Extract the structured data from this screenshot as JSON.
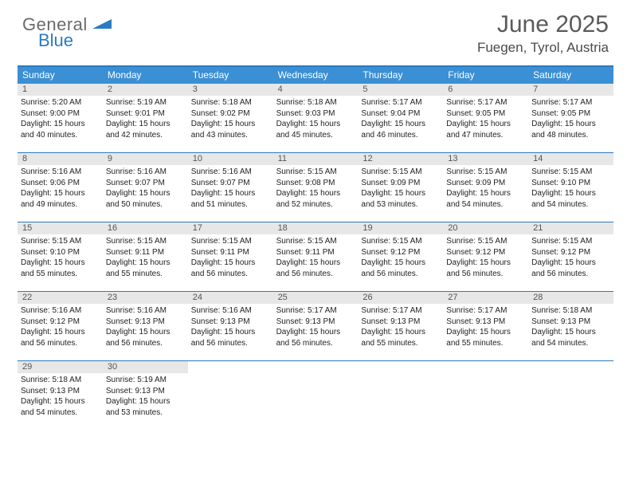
{
  "logo": {
    "word1": "General",
    "word2": "Blue",
    "tri_color": "#2b7bbf",
    "text_color_gray": "#6a6a6a"
  },
  "header": {
    "month_title": "June 2025",
    "location": "Fuegen, Tyrol, Austria"
  },
  "colors": {
    "header_bg": "#3b8fd4",
    "border": "#2b7bbf",
    "daynum_bg": "#e7e7e7"
  },
  "day_names": [
    "Sunday",
    "Monday",
    "Tuesday",
    "Wednesday",
    "Thursday",
    "Friday",
    "Saturday"
  ],
  "days": [
    {
      "n": "1",
      "sr": "5:20 AM",
      "ss": "9:00 PM",
      "dl": "15 hours and 40 minutes."
    },
    {
      "n": "2",
      "sr": "5:19 AM",
      "ss": "9:01 PM",
      "dl": "15 hours and 42 minutes."
    },
    {
      "n": "3",
      "sr": "5:18 AM",
      "ss": "9:02 PM",
      "dl": "15 hours and 43 minutes."
    },
    {
      "n": "4",
      "sr": "5:18 AM",
      "ss": "9:03 PM",
      "dl": "15 hours and 45 minutes."
    },
    {
      "n": "5",
      "sr": "5:17 AM",
      "ss": "9:04 PM",
      "dl": "15 hours and 46 minutes."
    },
    {
      "n": "6",
      "sr": "5:17 AM",
      "ss": "9:05 PM",
      "dl": "15 hours and 47 minutes."
    },
    {
      "n": "7",
      "sr": "5:17 AM",
      "ss": "9:05 PM",
      "dl": "15 hours and 48 minutes."
    },
    {
      "n": "8",
      "sr": "5:16 AM",
      "ss": "9:06 PM",
      "dl": "15 hours and 49 minutes."
    },
    {
      "n": "9",
      "sr": "5:16 AM",
      "ss": "9:07 PM",
      "dl": "15 hours and 50 minutes."
    },
    {
      "n": "10",
      "sr": "5:16 AM",
      "ss": "9:07 PM",
      "dl": "15 hours and 51 minutes."
    },
    {
      "n": "11",
      "sr": "5:15 AM",
      "ss": "9:08 PM",
      "dl": "15 hours and 52 minutes."
    },
    {
      "n": "12",
      "sr": "5:15 AM",
      "ss": "9:09 PM",
      "dl": "15 hours and 53 minutes."
    },
    {
      "n": "13",
      "sr": "5:15 AM",
      "ss": "9:09 PM",
      "dl": "15 hours and 54 minutes."
    },
    {
      "n": "14",
      "sr": "5:15 AM",
      "ss": "9:10 PM",
      "dl": "15 hours and 54 minutes."
    },
    {
      "n": "15",
      "sr": "5:15 AM",
      "ss": "9:10 PM",
      "dl": "15 hours and 55 minutes."
    },
    {
      "n": "16",
      "sr": "5:15 AM",
      "ss": "9:11 PM",
      "dl": "15 hours and 55 minutes."
    },
    {
      "n": "17",
      "sr": "5:15 AM",
      "ss": "9:11 PM",
      "dl": "15 hours and 56 minutes."
    },
    {
      "n": "18",
      "sr": "5:15 AM",
      "ss": "9:11 PM",
      "dl": "15 hours and 56 minutes."
    },
    {
      "n": "19",
      "sr": "5:15 AM",
      "ss": "9:12 PM",
      "dl": "15 hours and 56 minutes."
    },
    {
      "n": "20",
      "sr": "5:15 AM",
      "ss": "9:12 PM",
      "dl": "15 hours and 56 minutes."
    },
    {
      "n": "21",
      "sr": "5:15 AM",
      "ss": "9:12 PM",
      "dl": "15 hours and 56 minutes."
    },
    {
      "n": "22",
      "sr": "5:16 AM",
      "ss": "9:12 PM",
      "dl": "15 hours and 56 minutes."
    },
    {
      "n": "23",
      "sr": "5:16 AM",
      "ss": "9:13 PM",
      "dl": "15 hours and 56 minutes."
    },
    {
      "n": "24",
      "sr": "5:16 AM",
      "ss": "9:13 PM",
      "dl": "15 hours and 56 minutes."
    },
    {
      "n": "25",
      "sr": "5:17 AM",
      "ss": "9:13 PM",
      "dl": "15 hours and 56 minutes."
    },
    {
      "n": "26",
      "sr": "5:17 AM",
      "ss": "9:13 PM",
      "dl": "15 hours and 55 minutes."
    },
    {
      "n": "27",
      "sr": "5:17 AM",
      "ss": "9:13 PM",
      "dl": "15 hours and 55 minutes."
    },
    {
      "n": "28",
      "sr": "5:18 AM",
      "ss": "9:13 PM",
      "dl": "15 hours and 54 minutes."
    },
    {
      "n": "29",
      "sr": "5:18 AM",
      "ss": "9:13 PM",
      "dl": "15 hours and 54 minutes."
    },
    {
      "n": "30",
      "sr": "5:19 AM",
      "ss": "9:13 PM",
      "dl": "15 hours and 53 minutes."
    }
  ],
  "labels": {
    "sunrise": "Sunrise:",
    "sunset": "Sunset:",
    "daylight": "Daylight:"
  },
  "typography": {
    "title_fontsize": 30,
    "location_fontsize": 17,
    "dayhead_fontsize": 12,
    "body_fontsize": 10
  }
}
